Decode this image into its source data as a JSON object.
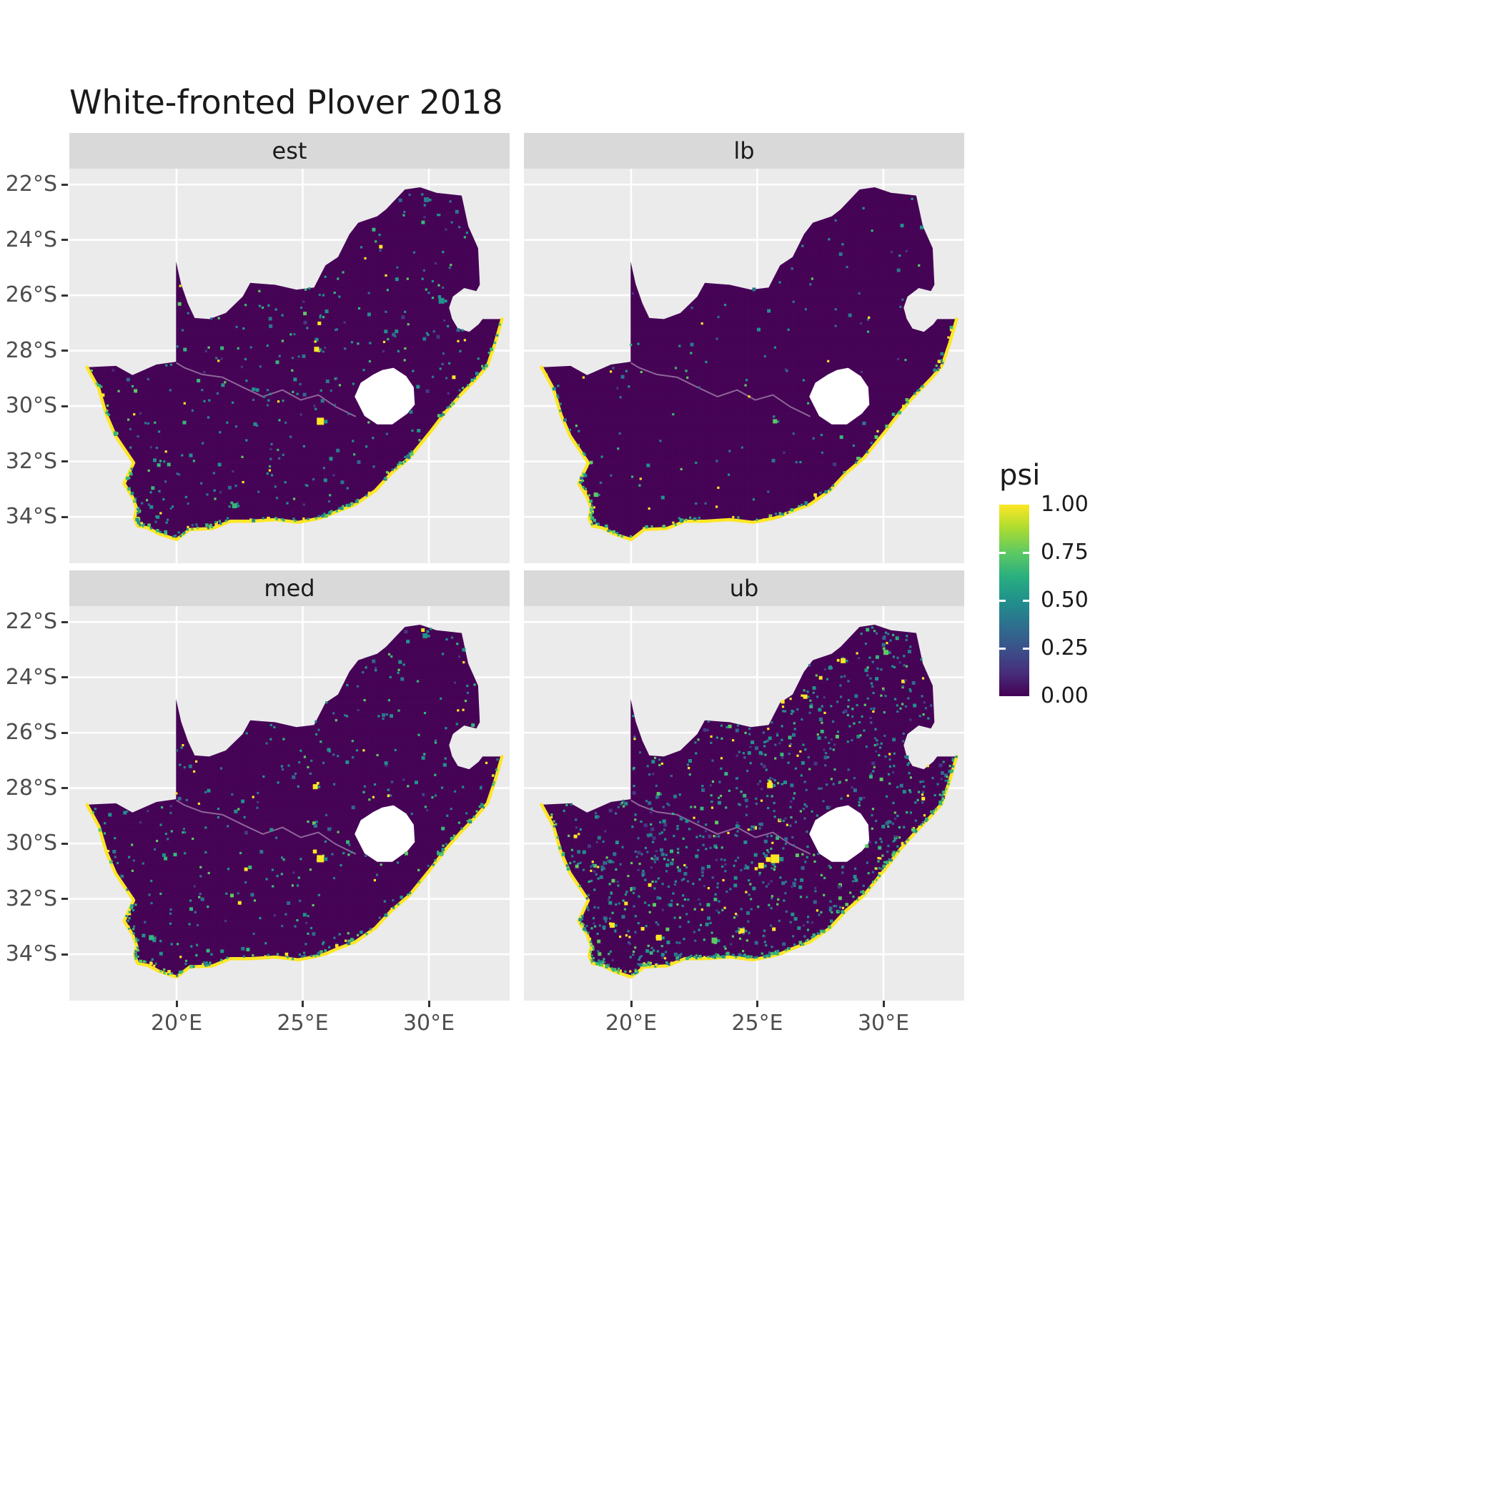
{
  "title": "White-fronted Plover 2018",
  "facets": [
    {
      "label": "est",
      "seed": 11,
      "n_inner": 330,
      "n_coast": 270,
      "hotspots": [
        [
          25.7,
          -30.55,
          "#fde725",
          10
        ],
        [
          25.55,
          -27.95,
          "#fde725",
          7
        ],
        [
          30.5,
          -26.2,
          "#21918c",
          8
        ],
        [
          29.9,
          -22.55,
          "#2a788e",
          7
        ],
        [
          22.3,
          -33.6,
          "#35b779",
          7
        ]
      ]
    },
    {
      "label": "lb",
      "seed": 22,
      "n_inner": 120,
      "n_coast": 240,
      "hotspots": [
        [
          25.7,
          -30.55,
          "#5ec962",
          6
        ],
        [
          18.6,
          -33.2,
          "#5ec962",
          6
        ]
      ]
    },
    {
      "label": "med",
      "seed": 33,
      "n_inner": 330,
      "n_coast": 270,
      "hotspots": [
        [
          25.7,
          -30.55,
          "#fde725",
          10
        ],
        [
          25.5,
          -27.95,
          "#fde725",
          7
        ],
        [
          29.85,
          -22.5,
          "#21918c",
          7
        ],
        [
          19.0,
          -33.4,
          "#35b779",
          7
        ]
      ]
    },
    {
      "label": "ub",
      "seed": 44,
      "n_inner": 980,
      "n_coast": 440,
      "hotspots": [
        [
          25.7,
          -30.55,
          "#fde725",
          12
        ],
        [
          25.15,
          -30.8,
          "#fde725",
          8
        ],
        [
          25.5,
          -27.9,
          "#fde725",
          8
        ],
        [
          21.1,
          -33.4,
          "#fde725",
          8
        ],
        [
          24.4,
          -33.15,
          "#fde725",
          7
        ],
        [
          28.4,
          -23.4,
          "#fde725",
          7
        ],
        [
          23.3,
          -33.5,
          "#5ec962",
          8
        ],
        [
          19.25,
          -32.95,
          "#fde725",
          7
        ],
        [
          26.9,
          -24.7,
          "#fde725",
          6
        ],
        [
          30.1,
          -23.1,
          "#5ec962",
          7
        ]
      ]
    }
  ],
  "axes": {
    "x_labels": [
      "20°E",
      "25°E",
      "30°E"
    ],
    "x_values": [
      20,
      25,
      30
    ],
    "y_labels": [
      "22°S",
      "24°S",
      "26°S",
      "28°S",
      "30°S",
      "32°S",
      "34°S"
    ],
    "y_values": [
      -22,
      -24,
      -26,
      -28,
      -30,
      -32,
      -34
    ]
  },
  "legend": {
    "title": "psi",
    "labels": [
      "1.00",
      "0.75",
      "0.50",
      "0.25",
      "0.00"
    ],
    "values": [
      1.0,
      0.75,
      0.5,
      0.25,
      0.0
    ]
  },
  "colors": {
    "map_fill": "#440154",
    "coast": "#fde725",
    "panel_bg": "#ebebeb",
    "strip_bg": "#d9d9d9",
    "grid": "#ffffff",
    "hole": "#ffffff",
    "axis_text": "#4d4d4d",
    "text": "#1a1a1a",
    "viridis_stops": [
      [
        0,
        "#440154"
      ],
      [
        0.12,
        "#472d7b"
      ],
      [
        0.25,
        "#3b528b"
      ],
      [
        0.38,
        "#2c728e"
      ],
      [
        0.5,
        "#21918c"
      ],
      [
        0.62,
        "#28ae80"
      ],
      [
        0.75,
        "#5ec962"
      ],
      [
        0.88,
        "#addc30"
      ],
      [
        1,
        "#fde725"
      ]
    ],
    "speckle_palette": [
      [
        "#21918c",
        0.3
      ],
      [
        "#2a788e",
        0.2
      ],
      [
        "#31688e",
        0.14
      ],
      [
        "#35b779",
        0.12
      ],
      [
        "#5ec962",
        0.09
      ],
      [
        "#443983",
        0.08
      ],
      [
        "#fde725",
        0.07
      ]
    ],
    "coast_palette": [
      [
        "#21918c",
        0.3
      ],
      [
        "#35b779",
        0.25
      ],
      [
        "#5ec962",
        0.2
      ],
      [
        "#fde725",
        0.15
      ],
      [
        "#2a788e",
        0.1
      ]
    ]
  },
  "chart_data": {
    "type": "heatmap",
    "subtype": "faceted raster occupancy map of South Africa",
    "title": "White-fronted Plover 2018",
    "region": "South Africa",
    "facets": [
      "est",
      "lb",
      "med",
      "ub"
    ],
    "variable": "psi (occupancy probability)",
    "value_range": [
      0,
      1
    ],
    "legend_breaks": [
      1.0,
      0.75,
      0.5,
      0.25,
      0.0
    ],
    "palette": "viridis",
    "x_axis": {
      "label": "",
      "tick_labels": [
        "20°E",
        "25°E",
        "30°E"
      ],
      "tick_values": [
        20,
        25,
        30
      ],
      "range_lon": [
        15.75,
        33.2
      ]
    },
    "y_axis": {
      "label": "",
      "tick_labels": [
        "22°S",
        "24°S",
        "26°S",
        "28°S",
        "30°S",
        "32°S",
        "34°S"
      ],
      "tick_values": [
        -22,
        -24,
        -26,
        -28,
        -30,
        -32,
        -34
      ],
      "range_lat": [
        -35.68,
        -21.43
      ]
    },
    "summary": "Predicted occupancy psi is near 0 (dark purple) across almost the entire interior of South Africa in all four facets (est = estimate, lb = lower bound, med = median, ub = upper bound); psi is near 1 (yellow) along the entire coastline, with scattered teal/green/yellow cells inland. The ub facet shows the most scattered mid/high values inland, lb the fewest. Lesotho appears as a white hole; Eswatini as a notch on the eastern border.",
    "facet_summaries": {
      "est": "mostly psi≈0 inland, yellow coastline, scattered teal cells, yellow hotspot near 25.7E 30.6S",
      "lb": "cleanest interior, nearly all psi≈0, yellow coastline only",
      "med": "similar to est: psi≈0 inland with scattered teal cells and coastal yellow",
      "ub": "densest scatter of mid/high psi cells inland and along west coast, yellow coastline"
    },
    "outline_lonlat": [
      [
        16.45,
        -28.6
      ],
      [
        17.6,
        -28.55
      ],
      [
        18.25,
        -28.88
      ],
      [
        19.2,
        -28.5
      ],
      [
        19.98,
        -28.4
      ],
      [
        19.98,
        -24.78
      ],
      [
        20.18,
        -25.6
      ],
      [
        20.45,
        -26.3
      ],
      [
        20.72,
        -26.82
      ],
      [
        21.3,
        -26.86
      ],
      [
        21.95,
        -26.64
      ],
      [
        22.62,
        -26.05
      ],
      [
        22.92,
        -25.55
      ],
      [
        23.9,
        -25.62
      ],
      [
        24.75,
        -25.8
      ],
      [
        25.45,
        -25.72
      ],
      [
        25.9,
        -24.92
      ],
      [
        26.4,
        -24.62
      ],
      [
        26.85,
        -23.8
      ],
      [
        27.2,
        -23.38
      ],
      [
        27.95,
        -23.15
      ],
      [
        28.3,
        -22.9
      ],
      [
        29.05,
        -22.18
      ],
      [
        29.65,
        -22.1
      ],
      [
        30.3,
        -22.3
      ],
      [
        31.3,
        -22.4
      ],
      [
        31.56,
        -23.5
      ],
      [
        31.95,
        -24.3
      ],
      [
        32.02,
        -25.62
      ],
      [
        31.88,
        -25.85
      ],
      [
        31.4,
        -25.74
      ],
      [
        30.95,
        -26.05
      ],
      [
        30.8,
        -26.45
      ],
      [
        30.92,
        -26.85
      ],
      [
        31.15,
        -27.2
      ],
      [
        31.6,
        -27.32
      ],
      [
        31.97,
        -27.05
      ],
      [
        32.13,
        -26.86
      ]
    ],
    "coastline_lonlat": [
      [
        32.9,
        -26.86
      ],
      [
        32.62,
        -27.75
      ],
      [
        32.32,
        -28.55
      ],
      [
        31.92,
        -28.98
      ],
      [
        31.28,
        -29.58
      ],
      [
        30.66,
        -30.22
      ],
      [
        30.02,
        -30.98
      ],
      [
        29.22,
        -31.88
      ],
      [
        28.52,
        -32.42
      ],
      [
        27.88,
        -33.05
      ],
      [
        27.08,
        -33.56
      ],
      [
        26.38,
        -33.8
      ],
      [
        25.92,
        -33.98
      ],
      [
        25.62,
        -34.06
      ],
      [
        24.82,
        -34.2
      ],
      [
        23.92,
        -34.1
      ],
      [
        22.92,
        -34.16
      ],
      [
        22.12,
        -34.16
      ],
      [
        21.42,
        -34.42
      ],
      [
        20.52,
        -34.46
      ],
      [
        20.0,
        -34.82
      ],
      [
        19.32,
        -34.62
      ],
      [
        18.86,
        -34.4
      ],
      [
        18.46,
        -34.33
      ],
      [
        18.33,
        -34.05
      ],
      [
        18.42,
        -33.7
      ],
      [
        18.26,
        -33.3
      ],
      [
        17.92,
        -32.8
      ],
      [
        18.3,
        -32.05
      ],
      [
        17.58,
        -31.08
      ],
      [
        17.22,
        -30.32
      ],
      [
        16.92,
        -29.38
      ],
      [
        16.45,
        -28.6
      ]
    ],
    "lesotho_hole_lonlat": [
      [
        28.6,
        -28.62
      ],
      [
        29.1,
        -28.92
      ],
      [
        29.4,
        -29.32
      ],
      [
        29.44,
        -29.95
      ],
      [
        29.14,
        -30.28
      ],
      [
        28.55,
        -30.66
      ],
      [
        27.95,
        -30.66
      ],
      [
        27.45,
        -30.36
      ],
      [
        27.06,
        -29.66
      ],
      [
        27.3,
        -29.16
      ],
      [
        27.8,
        -28.86
      ],
      [
        28.15,
        -28.7
      ]
    ],
    "river_lonlat": [
      [
        27.1,
        -30.38
      ],
      [
        26.3,
        -30.02
      ],
      [
        25.62,
        -29.6
      ],
      [
        24.92,
        -29.78
      ],
      [
        24.2,
        -29.42
      ],
      [
        23.42,
        -29.66
      ],
      [
        22.62,
        -29.32
      ],
      [
        21.82,
        -28.96
      ],
      [
        21.02,
        -28.86
      ],
      [
        20.32,
        -28.62
      ],
      [
        19.99,
        -28.44
      ]
    ]
  }
}
